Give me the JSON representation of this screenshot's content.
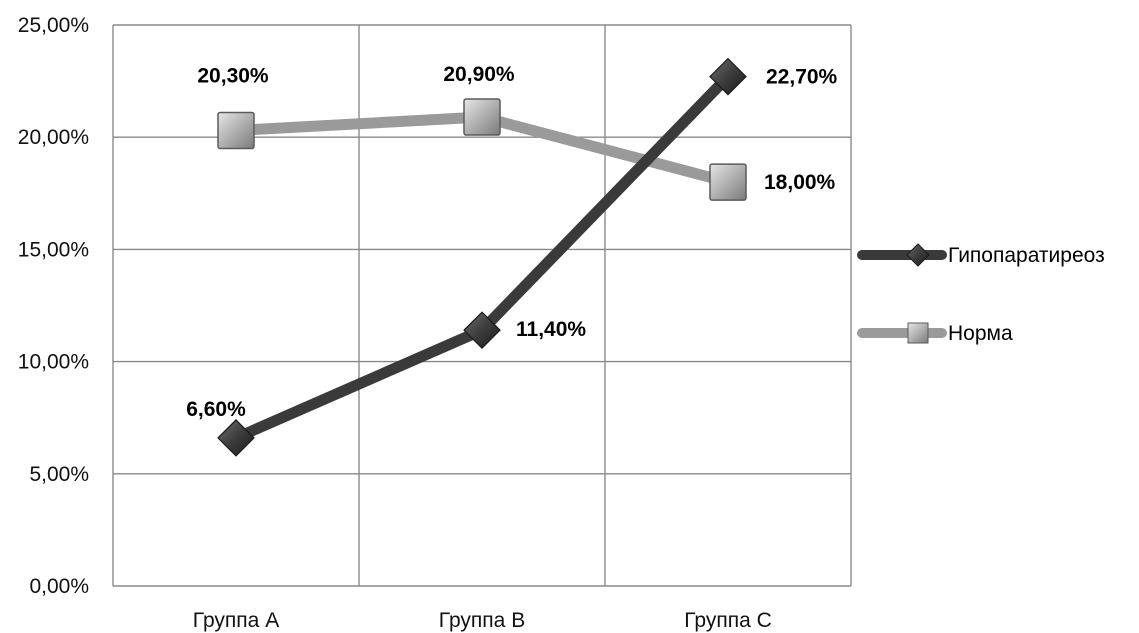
{
  "chart_data": {
    "type": "line",
    "categories": [
      "Группа А",
      "Группа В",
      "Группа С"
    ],
    "y_ticks": [
      "0,00%",
      "5,00%",
      "10,00%",
      "15,00%",
      "20,00%",
      "25,00%"
    ],
    "ylim": [
      0,
      25
    ],
    "grid": true,
    "legend_position": "right",
    "series": [
      {
        "name": "Гипопаратиреоз",
        "values": [
          6.6,
          11.4,
          22.7
        ],
        "labels": [
          "6,60%",
          "11,40%",
          "22,70%"
        ],
        "marker": "diamond",
        "color": "#3a3a3a"
      },
      {
        "name": "Норма",
        "values": [
          20.3,
          20.9,
          18.0
        ],
        "labels": [
          "20,30%",
          "20,90%",
          "18,00%"
        ],
        "marker": "square",
        "color": "#9a9a9a"
      }
    ]
  }
}
